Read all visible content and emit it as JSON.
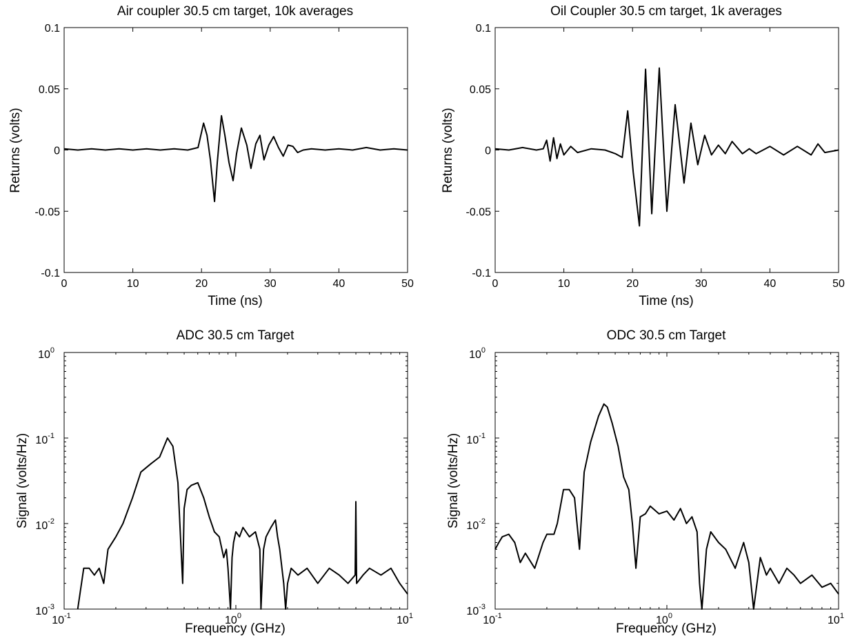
{
  "chart_data": [
    {
      "type": "line",
      "title": "Air coupler 30.5 cm target, 10k averages",
      "xlabel": "Time (ns)",
      "ylabel": "Returns (volts)",
      "xlim": [
        0,
        50
      ],
      "ylim": [
        -0.1,
        0.1
      ],
      "xticks": [
        "0",
        "10",
        "20",
        "30",
        "40",
        "50"
      ],
      "yticks": [
        "-0.1",
        "-0.05",
        "0",
        "0.05",
        "0.1"
      ],
      "grid": false,
      "series": [
        {
          "x": [
            0,
            2,
            4,
            6,
            8,
            10,
            12,
            14,
            16,
            18,
            19.5,
            20.3,
            20.8,
            21.3,
            21.9,
            22.3,
            22.9,
            23.4,
            24.0,
            24.6,
            25.1,
            25.8,
            26.6,
            27.2,
            27.9,
            28.5,
            29.1,
            29.8,
            30.5,
            31.2,
            31.9,
            32.6,
            33.3,
            34.0,
            34.8,
            36,
            38,
            40,
            42,
            44,
            46,
            48,
            50
          ],
          "y": [
            0.001,
            0.0,
            0.001,
            0.0,
            0.001,
            0.0,
            0.001,
            0.0,
            0.001,
            0.0,
            0.002,
            0.022,
            0.012,
            -0.008,
            -0.042,
            -0.01,
            0.028,
            0.012,
            -0.01,
            -0.025,
            -0.003,
            0.018,
            0.004,
            -0.015,
            0.005,
            0.012,
            -0.008,
            0.004,
            0.011,
            0.002,
            -0.005,
            0.004,
            0.003,
            -0.002,
            0.0,
            0.001,
            0.0,
            0.001,
            0.0,
            0.002,
            0.0,
            0.001,
            0.0
          ]
        }
      ]
    },
    {
      "type": "line",
      "title": "Oil Coupler 30.5 cm target, 1k averages",
      "xlabel": "Time (ns)",
      "ylabel": "Returns (volts)",
      "xlim": [
        0,
        50
      ],
      "ylim": [
        -0.1,
        0.1
      ],
      "xticks": [
        "0",
        "10",
        "20",
        "30",
        "40",
        "50"
      ],
      "yticks": [
        "-0.1",
        "-0.05",
        "0",
        "0.05",
        "0.1"
      ],
      "grid": false,
      "series": [
        {
          "x": [
            0,
            2,
            4,
            6,
            7,
            7.5,
            8,
            8.5,
            9,
            9.5,
            10,
            11,
            12,
            14,
            16,
            17.5,
            18.5,
            19.3,
            20.1,
            21.0,
            21.9,
            22.8,
            23.9,
            25.0,
            26.2,
            27.5,
            28.5,
            29.5,
            30.5,
            31.5,
            32.5,
            33.5,
            34.5,
            36,
            37,
            38,
            40,
            42,
            44,
            46,
            47,
            48,
            50
          ],
          "y": [
            0.001,
            0.0,
            0.002,
            0.0,
            0.001,
            0.008,
            -0.009,
            0.01,
            -0.007,
            0.005,
            -0.004,
            0.003,
            -0.002,
            0.001,
            0.0,
            -0.003,
            -0.006,
            0.032,
            -0.018,
            -0.062,
            0.066,
            -0.052,
            0.067,
            -0.05,
            0.037,
            -0.027,
            0.022,
            -0.012,
            0.012,
            -0.004,
            0.004,
            -0.003,
            0.007,
            -0.003,
            0.001,
            -0.003,
            0.003,
            -0.004,
            0.003,
            -0.004,
            0.005,
            -0.002,
            0.0
          ]
        }
      ]
    },
    {
      "type": "line",
      "title": "ADC 30.5 cm Target",
      "xlabel": "Frequency (GHz)",
      "ylabel": "Signal (volts/Hz)",
      "xscale": "log",
      "yscale": "log",
      "xlim": [
        0.1,
        10
      ],
      "ylim": [
        0.001,
        1
      ],
      "xticks": [
        {
          "base": "10",
          "exp": "-1"
        },
        {
          "base": "10",
          "exp": "0"
        },
        {
          "base": "10",
          "exp": "1"
        }
      ],
      "yticks": [
        {
          "base": "10",
          "exp": "-3"
        },
        {
          "base": "10",
          "exp": "-2"
        },
        {
          "base": "10",
          "exp": "-1"
        },
        {
          "base": "10",
          "exp": "0"
        }
      ],
      "grid": false,
      "series": [
        {
          "x": [
            0.12,
            0.13,
            0.14,
            0.15,
            0.16,
            0.17,
            0.18,
            0.2,
            0.22,
            0.25,
            0.28,
            0.32,
            0.36,
            0.4,
            0.43,
            0.46,
            0.49,
            0.5,
            0.52,
            0.55,
            0.6,
            0.65,
            0.7,
            0.75,
            0.8,
            0.85,
            0.88,
            0.9,
            0.93,
            0.95,
            0.97,
            1.0,
            1.05,
            1.1,
            1.2,
            1.3,
            1.38,
            1.4,
            1.45,
            1.5,
            1.6,
            1.7,
            1.75,
            1.8,
            1.9,
            1.95,
            2.0,
            2.1,
            2.3,
            2.6,
            3.0,
            3.5,
            4.0,
            4.5,
            4.95,
            5.0,
            5.05,
            5.5,
            6.0,
            7.0,
            8.0,
            9.0,
            10.0
          ],
          "y": [
            0.001,
            0.003,
            0.003,
            0.0025,
            0.003,
            0.002,
            0.005,
            0.007,
            0.01,
            0.02,
            0.04,
            0.05,
            0.06,
            0.1,
            0.08,
            0.03,
            0.002,
            0.015,
            0.025,
            0.028,
            0.03,
            0.02,
            0.012,
            0.008,
            0.007,
            0.004,
            0.005,
            0.003,
            0.001,
            0.004,
            0.006,
            0.008,
            0.007,
            0.009,
            0.007,
            0.008,
            0.005,
            0.001,
            0.005,
            0.007,
            0.009,
            0.011,
            0.007,
            0.005,
            0.002,
            0.001,
            0.002,
            0.003,
            0.0025,
            0.003,
            0.002,
            0.003,
            0.0025,
            0.002,
            0.0025,
            0.018,
            0.002,
            0.0025,
            0.003,
            0.0025,
            0.003,
            0.002,
            0.0015
          ]
        }
      ]
    },
    {
      "type": "line",
      "title": "ODC 30.5 cm Target",
      "xlabel": "Frequency (GHz)",
      "ylabel": "Signal (volts/Hz)",
      "xscale": "log",
      "yscale": "log",
      "xlim": [
        0.1,
        10
      ],
      "ylim": [
        0.001,
        1
      ],
      "xticks": [
        {
          "base": "10",
          "exp": "-1"
        },
        {
          "base": "10",
          "exp": "0"
        },
        {
          "base": "10",
          "exp": "1"
        }
      ],
      "yticks": [
        {
          "base": "10",
          "exp": "-3"
        },
        {
          "base": "10",
          "exp": "-2"
        },
        {
          "base": "10",
          "exp": "-1"
        },
        {
          "base": "10",
          "exp": "0"
        }
      ],
      "grid": false,
      "series": [
        {
          "x": [
            0.1,
            0.105,
            0.11,
            0.12,
            0.13,
            0.14,
            0.15,
            0.17,
            0.19,
            0.2,
            0.22,
            0.23,
            0.25,
            0.27,
            0.29,
            0.31,
            0.33,
            0.36,
            0.4,
            0.43,
            0.45,
            0.48,
            0.52,
            0.56,
            0.6,
            0.63,
            0.66,
            0.7,
            0.75,
            0.8,
            0.9,
            1.0,
            1.1,
            1.2,
            1.3,
            1.4,
            1.5,
            1.55,
            1.6,
            1.7,
            1.8,
            2.0,
            2.2,
            2.5,
            2.8,
            3.0,
            3.2,
            3.5,
            3.8,
            4.0,
            4.5,
            5.0,
            5.5,
            6.0,
            7.0,
            8.0,
            9.0,
            10.0
          ],
          "y": [
            0.005,
            0.006,
            0.007,
            0.0075,
            0.006,
            0.0035,
            0.0045,
            0.003,
            0.006,
            0.0075,
            0.0075,
            0.01,
            0.025,
            0.025,
            0.02,
            0.005,
            0.04,
            0.09,
            0.18,
            0.25,
            0.23,
            0.15,
            0.08,
            0.035,
            0.025,
            0.01,
            0.003,
            0.012,
            0.013,
            0.016,
            0.013,
            0.014,
            0.011,
            0.015,
            0.01,
            0.012,
            0.008,
            0.002,
            0.001,
            0.005,
            0.008,
            0.006,
            0.005,
            0.003,
            0.006,
            0.0035,
            0.001,
            0.004,
            0.0025,
            0.003,
            0.002,
            0.003,
            0.0025,
            0.002,
            0.0025,
            0.0018,
            0.002,
            0.0015
          ]
        }
      ]
    }
  ]
}
